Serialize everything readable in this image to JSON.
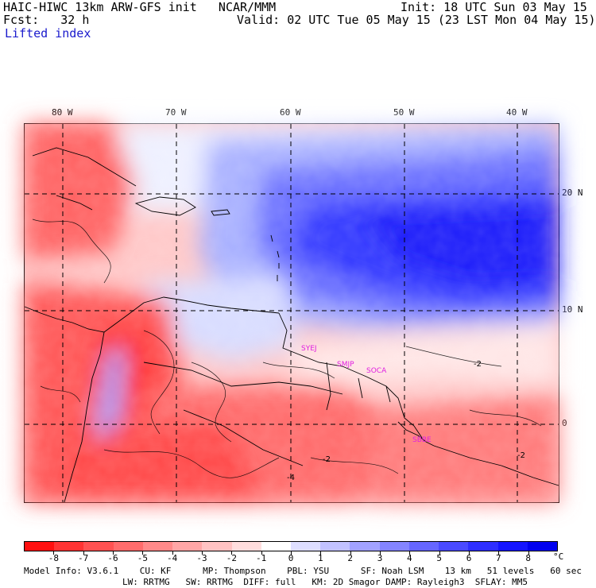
{
  "header": {
    "model": "HAIC-HIWC 13km ARW-GFS init   NCAR/MMM",
    "init": "Init: 18 UTC Sun 03 May 15",
    "fcst": "Fcst:   32 h",
    "valid": "Valid: 02 UTC Tue 05 May 15 (23 LST Mon 04 May 15)",
    "field": "Lifted index"
  },
  "map": {
    "lon_labels": [
      "80 W",
      "70 W",
      "60 W",
      "50 W",
      "40 W"
    ],
    "lat_labels": [
      "20 N",
      "10 N",
      "0"
    ],
    "stations": [
      "SYEJ",
      "SMJP",
      "SOCA",
      "SBBE"
    ],
    "contour_labels": [
      "-2",
      "-2",
      "-4",
      "-2"
    ],
    "colors": {
      "red": "#ff2020",
      "blue": "#1a1aff",
      "white": "#ffffff",
      "stations": "#e020e0"
    }
  },
  "colorbar": {
    "labels": [
      "-8",
      "-7",
      "-6",
      "-5",
      "-4",
      "-3",
      "-2",
      "-1",
      "0",
      "1",
      "2",
      "3",
      "4",
      "5",
      "6",
      "7",
      "8"
    ],
    "unit": "°C",
    "colors": [
      "#ff1010",
      "#ff3434",
      "#ff5252",
      "#ff6c6c",
      "#ff8a8a",
      "#ffa6a6",
      "#ffc2c2",
      "#ffdede",
      "#ffffff",
      "#dedeff",
      "#c2c2ff",
      "#a2a2ff",
      "#8484ff",
      "#6666ff",
      "#4a4aff",
      "#2e2eff",
      "#1414ff",
      "#0000f0"
    ]
  },
  "footer": {
    "line1": "Model Info: V3.6.1    CU: KF      MP: Thompson    PBL: YSU      SF: Noah LSM    13 km   51 levels   60 sec",
    "line2": "LW: RRTMG   SW: RRTMG  DIFF: full   KM: 2D Smagor DAMP: Rayleigh3  SFLAY: MM5"
  }
}
